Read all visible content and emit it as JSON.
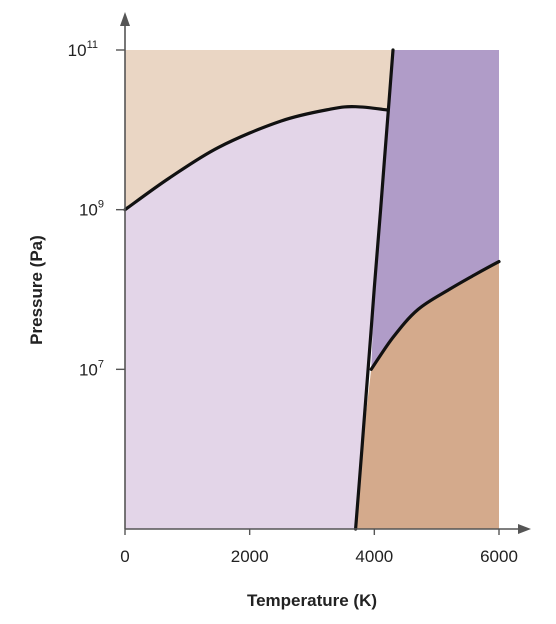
{
  "chart_data": {
    "type": "area",
    "title": "",
    "xlabel": "Temperature (K)",
    "ylabel": "Pressure (Pa)",
    "x_ticks": [
      {
        "value": 0,
        "label": "0"
      },
      {
        "value": 2000,
        "label": "2000"
      },
      {
        "value": 4000,
        "label": "4000"
      },
      {
        "value": 6000,
        "label": "6000"
      }
    ],
    "y_ticks": [
      {
        "exponent": 7,
        "base": "10",
        "sup": "7"
      },
      {
        "exponent": 9,
        "base": "10",
        "sup": "9"
      },
      {
        "exponent": 11,
        "base": "10",
        "sup": "11"
      }
    ],
    "xlim": [
      0,
      6000
    ],
    "ylim_log10": [
      5,
      11
    ],
    "y_scale": "log",
    "grid": false,
    "region_colors": {
      "upper_left": "#ead6c4",
      "lower_left": "#e3d5e8",
      "right_middle": "#b09cc8",
      "lower_right": "#d4aa8c"
    },
    "boundaries": [
      {
        "name": "",
        "x": [
          0,
          700,
          1500,
          2500,
          3300,
          3700,
          4200
        ],
        "log10_y": [
          9.0,
          9.39,
          9.78,
          10.11,
          10.26,
          10.29,
          10.25
        ]
      },
      {
        "name": "",
        "x": [
          3700,
          3800,
          3900,
          4000,
          4100,
          4200,
          4300
        ],
        "log10_y": [
          5.0,
          6.0,
          7.0,
          8.02,
          9.0,
          10.0,
          11.0
        ]
      },
      {
        "name": "",
        "x": [
          3950,
          4300,
          4700,
          5200,
          5600,
          6000
        ],
        "log10_y": [
          7.0,
          7.4,
          7.75,
          8.0,
          8.18,
          8.35
        ]
      }
    ],
    "line_color": "#111111"
  }
}
